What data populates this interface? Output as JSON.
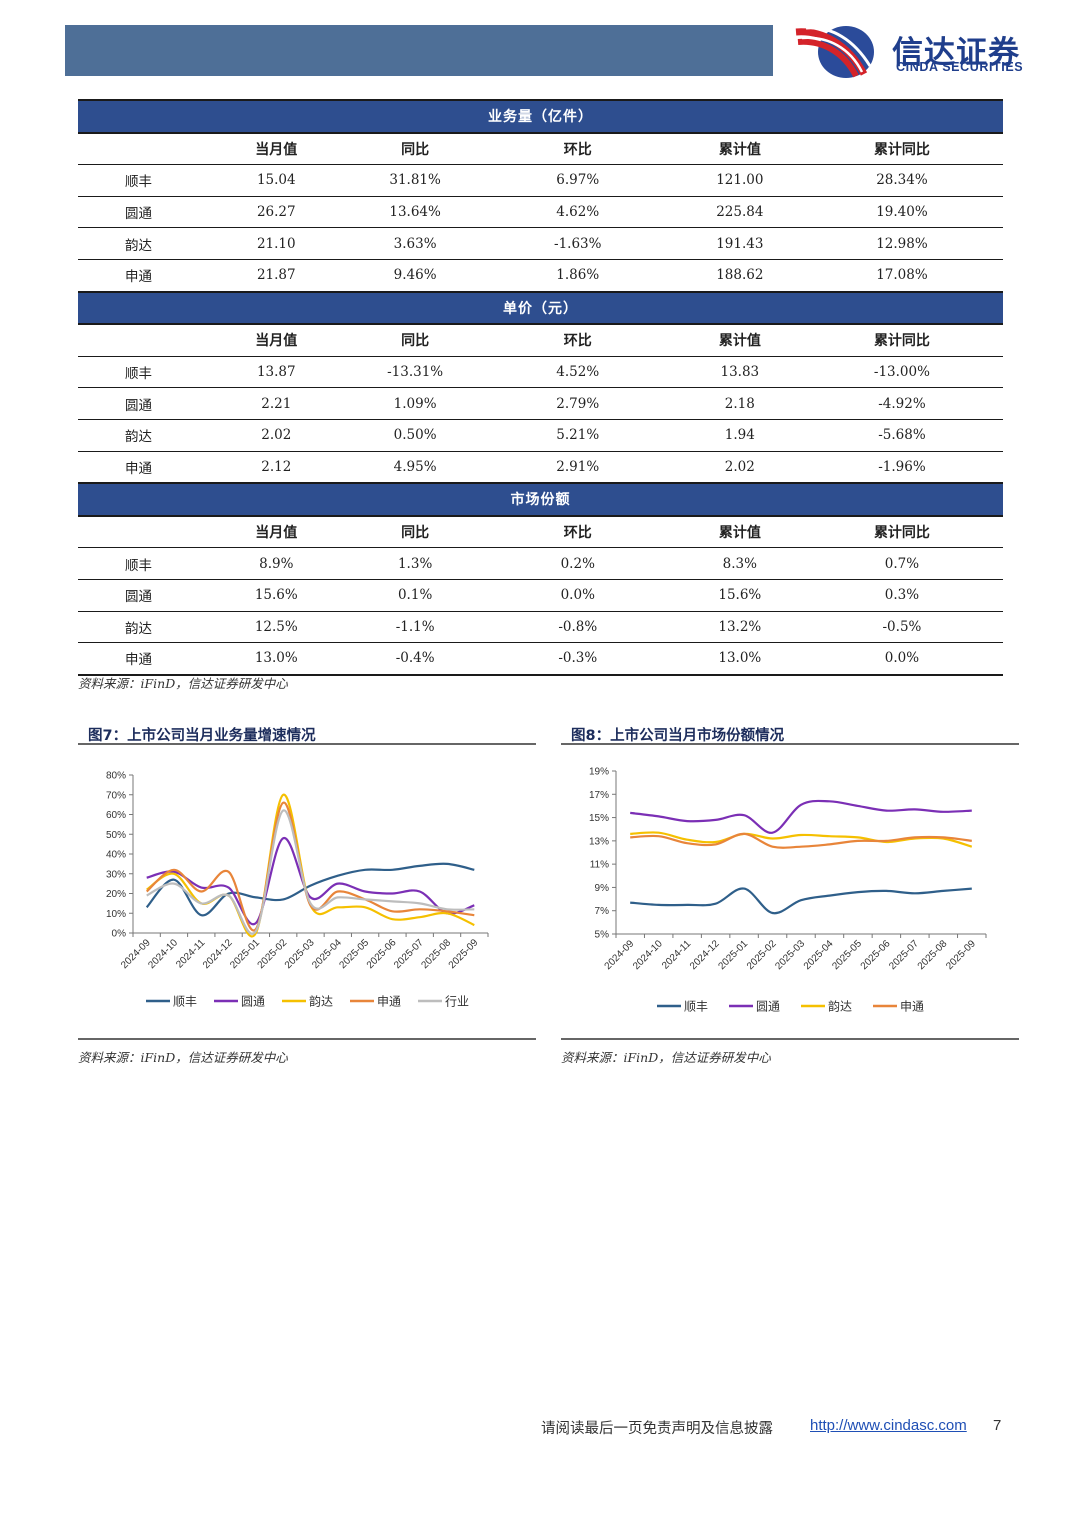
{
  "brand": {
    "cn": "信达证券",
    "en": "CINDA SECURITIES"
  },
  "table": {
    "columns": [
      "",
      "当月值",
      "同比",
      "环比",
      "累计值",
      "累计同比"
    ],
    "sections": [
      {
        "title": "业务量（亿件）",
        "rows": [
          [
            "顺丰",
            "15.04",
            "31.81%",
            "6.97%",
            "121.00",
            "28.34%"
          ],
          [
            "圆通",
            "26.27",
            "13.64%",
            "4.62%",
            "225.84",
            "19.40%"
          ],
          [
            "韵达",
            "21.10",
            "3.63%",
            "-1.63%",
            "191.43",
            "12.98%"
          ],
          [
            "申通",
            "21.87",
            "9.46%",
            "1.86%",
            "188.62",
            "17.08%"
          ]
        ]
      },
      {
        "title": "单价（元）",
        "rows": [
          [
            "顺丰",
            "13.87",
            "-13.31%",
            "4.52%",
            "13.83",
            "-13.00%"
          ],
          [
            "圆通",
            "2.21",
            "1.09%",
            "2.79%",
            "2.18",
            "-4.92%"
          ],
          [
            "韵达",
            "2.02",
            "0.50%",
            "5.21%",
            "1.94",
            "-5.68%"
          ],
          [
            "申通",
            "2.12",
            "4.95%",
            "2.91%",
            "2.02",
            "-1.96%"
          ]
        ]
      },
      {
        "title": "市场份额",
        "rows": [
          [
            "顺丰",
            "8.9%",
            "1.3%",
            "0.2%",
            "8.3%",
            "0.7%"
          ],
          [
            "圆通",
            "15.6%",
            "0.1%",
            "0.0%",
            "15.6%",
            "0.3%"
          ],
          [
            "韵达",
            "12.5%",
            "-1.1%",
            "-0.8%",
            "13.2%",
            "-0.5%"
          ],
          [
            "申通",
            "13.0%",
            "-0.4%",
            "-0.3%",
            "13.0%",
            "0.0%"
          ]
        ]
      }
    ],
    "source": "资料来源：iFinD，信达证券研发中心"
  },
  "figures": {
    "fig7": {
      "title": "图7：上市公司当月业务量增速情况",
      "source": "资料来源：iFinD，信达证券研发中心"
    },
    "fig8": {
      "title": "图8：上市公司当月市场份额情况",
      "source": "资料来源：iFinD，信达证券研发中心"
    }
  },
  "chart_data": [
    {
      "type": "line",
      "title": "图7：上市公司当月业务量增速情况",
      "x": [
        "2024-09",
        "2024-10",
        "2024-11",
        "2024-12",
        "2025-01",
        "2025-02",
        "2025-03",
        "2025-04",
        "2025-05",
        "2025-06",
        "2025-07",
        "2025-08",
        "2025-09"
      ],
      "ylim": [
        0,
        80
      ],
      "yticks": [
        "0%",
        "10%",
        "20%",
        "30%",
        "40%",
        "50%",
        "60%",
        "70%",
        "80%"
      ],
      "unit": "%",
      "series": [
        {
          "name": "顺丰",
          "color": "#2f5f8a",
          "values": [
            13,
            27,
            9,
            20,
            18,
            17,
            24,
            29,
            32,
            32,
            34,
            35,
            32
          ]
        },
        {
          "name": "圆通",
          "color": "#7b2fb5",
          "values": [
            28,
            31,
            23,
            23,
            5,
            48,
            18,
            25,
            21,
            20,
            21,
            10,
            14
          ]
        },
        {
          "name": "韵达",
          "color": "#f5c000",
          "values": [
            22,
            30,
            15,
            19,
            0,
            70,
            14,
            13,
            13,
            7,
            8,
            10,
            4
          ]
        },
        {
          "name": "申通",
          "color": "#e8853a",
          "values": [
            21,
            32,
            21,
            31,
            2,
            66,
            14,
            21,
            17,
            11,
            12,
            11,
            9
          ]
        },
        {
          "name": "行业",
          "color": "#bdbdbd",
          "values": [
            19,
            25,
            15,
            19,
            1,
            62,
            15,
            18,
            17,
            16,
            15,
            12,
            12
          ]
        }
      ],
      "legend": "bottom"
    },
    {
      "type": "line",
      "title": "图8：上市公司当月市场份额情况",
      "x": [
        "2024-09",
        "2024-10",
        "2024-11",
        "2024-12",
        "2025-01",
        "2025-02",
        "2025-03",
        "2025-04",
        "2025-05",
        "2025-06",
        "2025-07",
        "2025-08",
        "2025-09"
      ],
      "ylim": [
        5,
        19
      ],
      "yticks": [
        "5%",
        "7%",
        "9%",
        "11%",
        "13%",
        "15%",
        "17%",
        "19%"
      ],
      "unit": "%",
      "series": [
        {
          "name": "顺丰",
          "color": "#2f5f8a",
          "values": [
            7.7,
            7.5,
            7.5,
            7.6,
            8.9,
            6.8,
            7.9,
            8.3,
            8.6,
            8.7,
            8.5,
            8.7,
            8.9
          ]
        },
        {
          "name": "圆通",
          "color": "#7b2fb5",
          "values": [
            15.4,
            15.1,
            14.7,
            14.8,
            15.2,
            13.7,
            16.1,
            16.4,
            16.0,
            15.6,
            15.7,
            15.5,
            15.6
          ]
        },
        {
          "name": "韵达",
          "color": "#f5c000",
          "values": [
            13.6,
            13.7,
            13.1,
            12.9,
            13.6,
            13.2,
            13.5,
            13.4,
            13.3,
            12.9,
            13.2,
            13.2,
            12.5
          ]
        },
        {
          "name": "申通",
          "color": "#e8853a",
          "values": [
            13.3,
            13.4,
            12.8,
            12.7,
            13.6,
            12.5,
            12.5,
            12.7,
            13.0,
            13.0,
            13.3,
            13.3,
            13.0
          ]
        }
      ],
      "legend": "bottom"
    }
  ],
  "footer": {
    "text": "请阅读最后一页免责声明及信息披露",
    "url": "http://www.cindasc.com",
    "page": "7"
  }
}
